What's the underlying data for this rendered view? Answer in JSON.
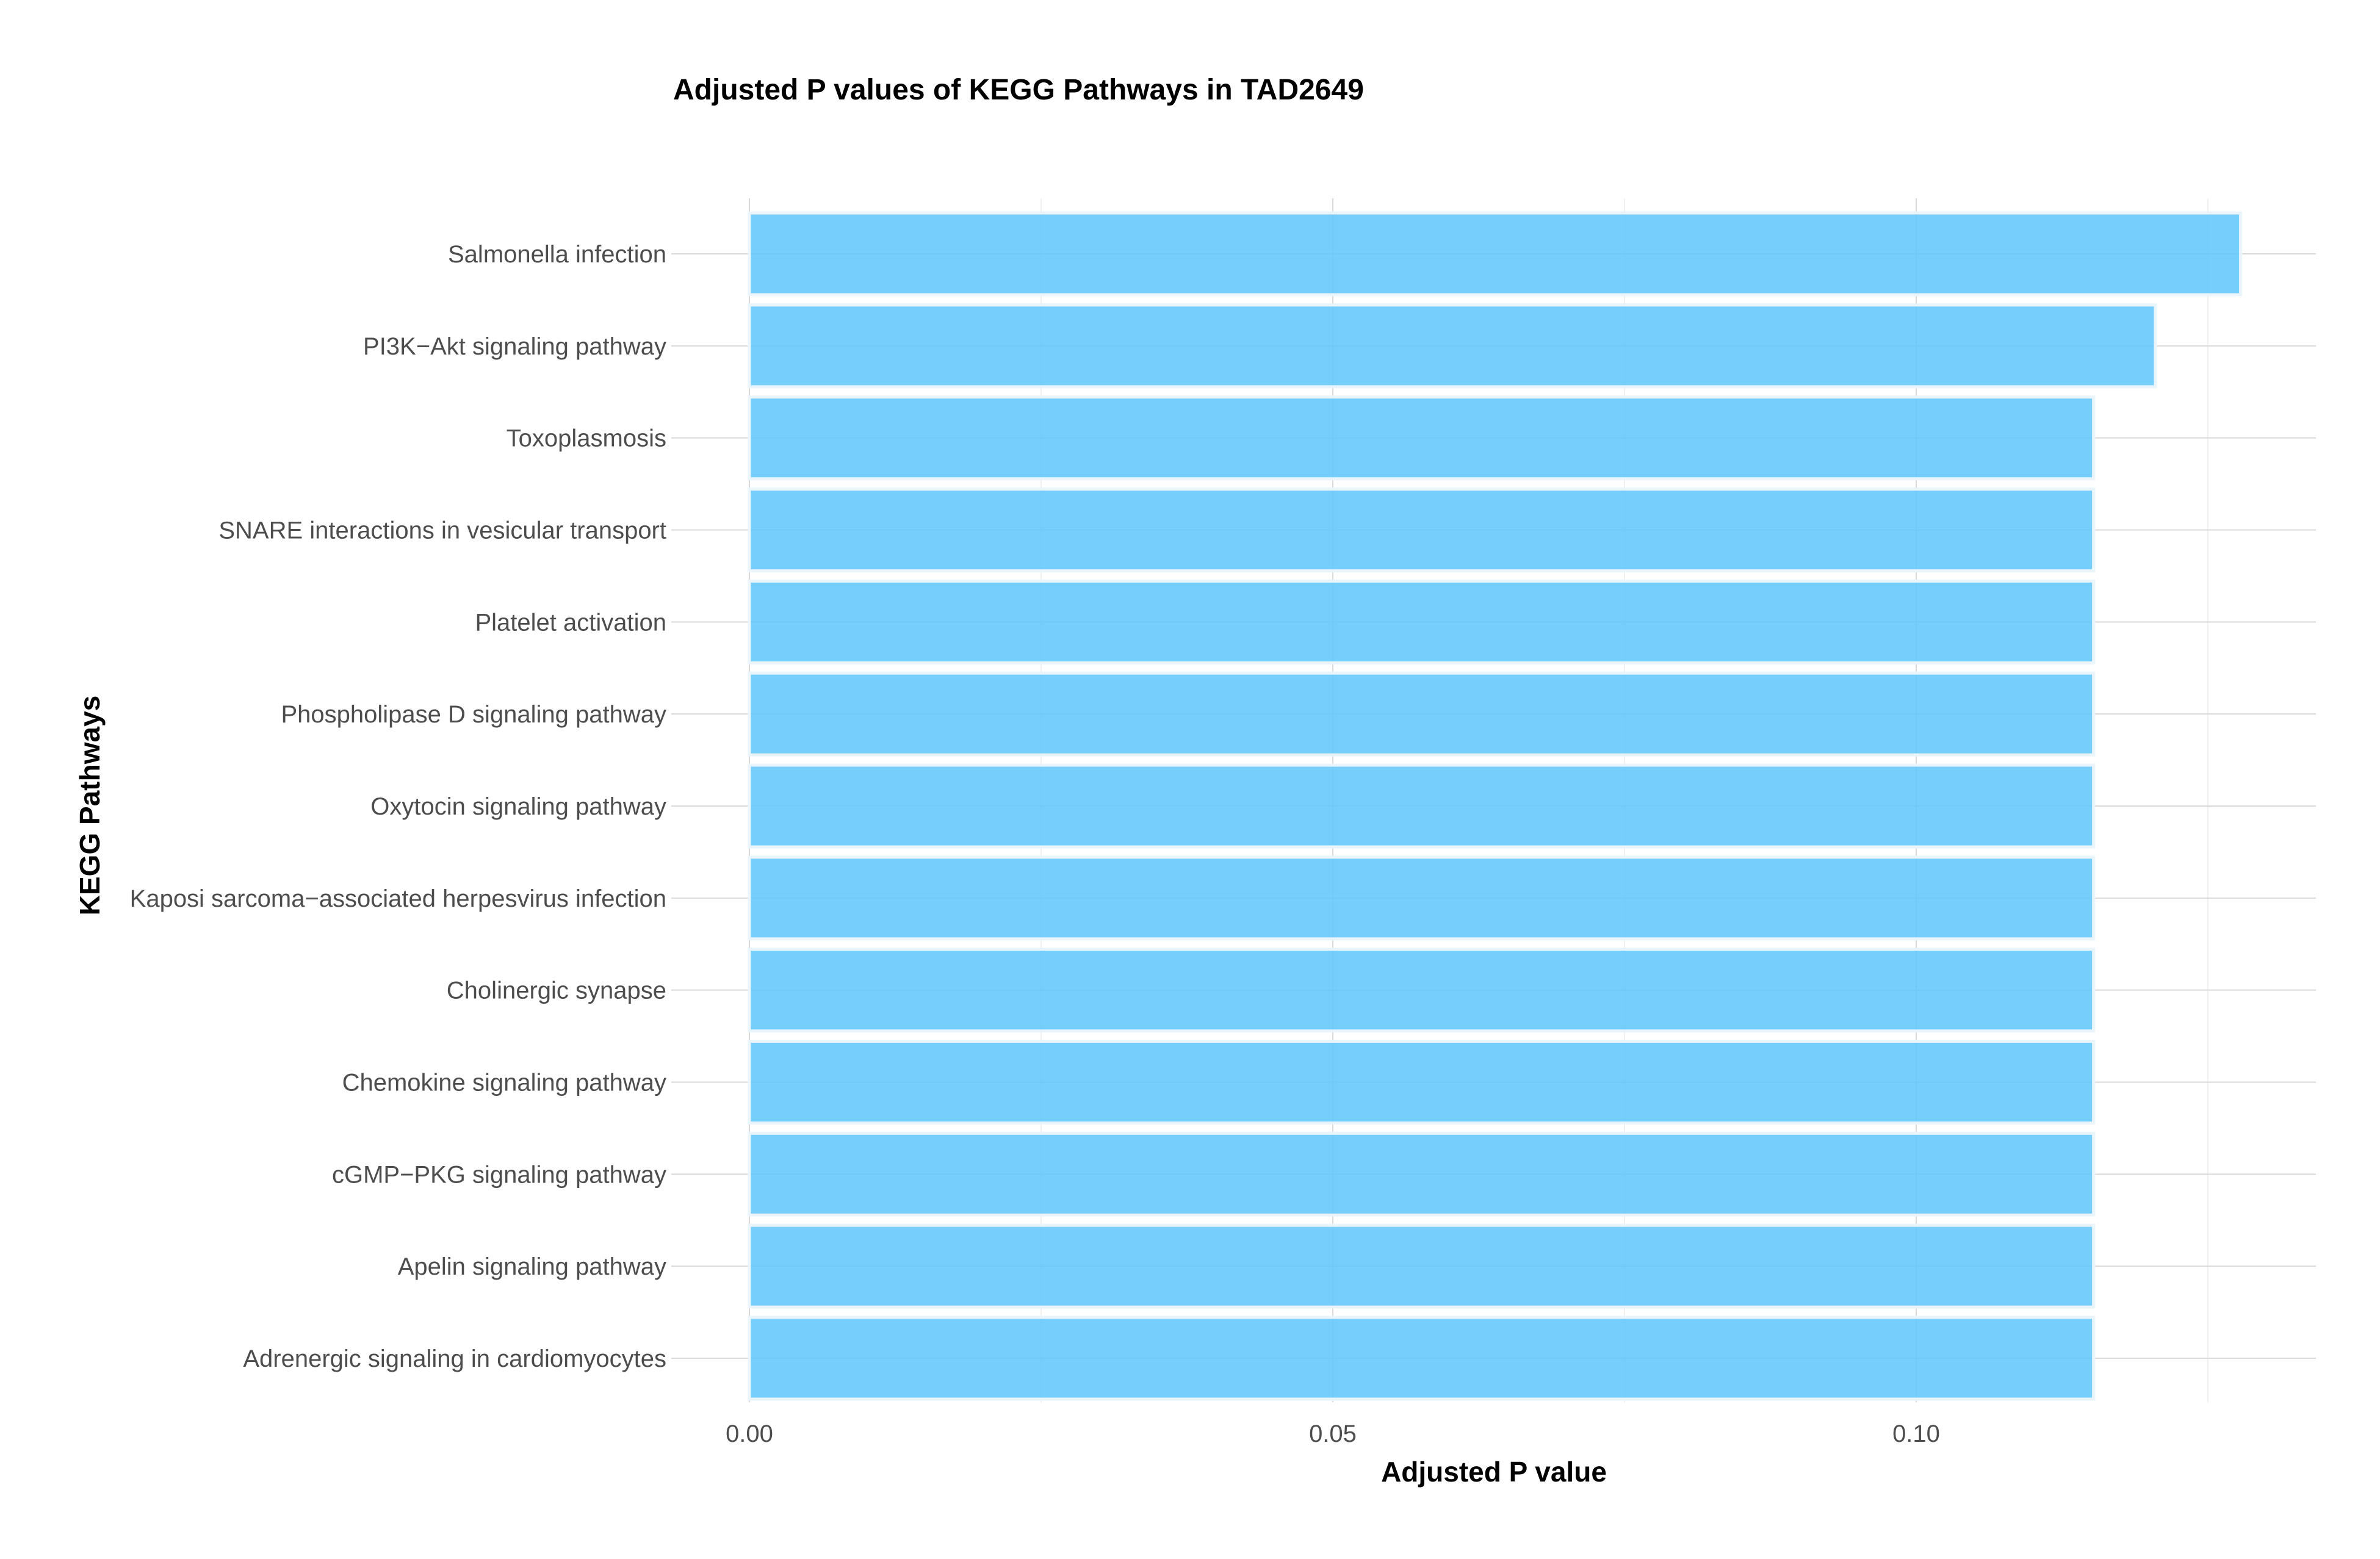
{
  "chart_data": {
    "type": "bar",
    "orientation": "horizontal",
    "title": "Adjusted P values of KEGG Pathways in TAD2649",
    "xlabel": "Adjusted P value",
    "ylabel": "KEGG Pathways",
    "categories": [
      "Salmonella infection",
      "PI3K−Akt signaling pathway",
      "Toxoplasmosis",
      "SNARE interactions in vesicular transport",
      "Platelet activation",
      "Phospholipase D signaling pathway",
      "Oxytocin signaling pathway",
      "Kaposi sarcoma−associated herpesvirus infection",
      "Cholinergic synapse",
      "Chemokine signaling pathway",
      "cGMP−PKG signaling pathway",
      "Apelin signaling pathway",
      "Adrenergic signaling in cardiomyocytes"
    ],
    "values": [
      0.1278,
      0.1205,
      0.1152,
      0.1152,
      0.1152,
      0.1152,
      0.1152,
      0.1152,
      0.1152,
      0.1152,
      0.1152,
      0.1152,
      0.1152
    ],
    "xlim": [
      0,
      0.134
    ],
    "xticks": [
      0,
      0.05,
      0.1
    ],
    "xtick_labels": [
      "0.00",
      "0.05",
      "0.10"
    ],
    "minor_xticks": [
      0.025,
      0.075,
      0.125
    ],
    "grid": true,
    "legend": "none",
    "bar_color": "#5ec6fb",
    "bar_outline_color": "#eaf4fb"
  }
}
